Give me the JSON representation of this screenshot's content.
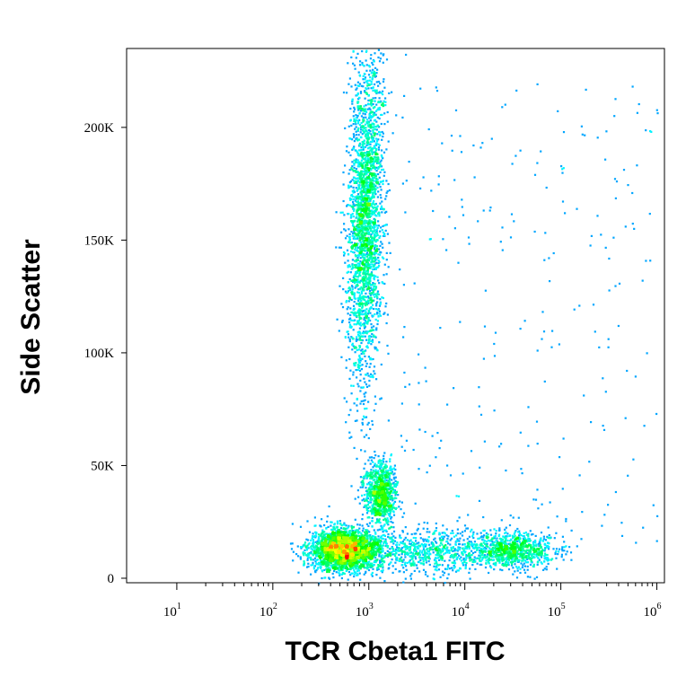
{
  "chart_data": {
    "type": "scatter",
    "subtype": "density-dot-plot",
    "title": "",
    "xlabel": "TCR Cbeta1 FITC",
    "ylabel": "Side Scatter",
    "x_scale": "log",
    "xlim": [
      3,
      1200000
    ],
    "ylim": [
      -2000,
      235000
    ],
    "x_ticks": [
      {
        "base": "10",
        "exp": "1",
        "value": 10
      },
      {
        "base": "10",
        "exp": "2",
        "value": 100
      },
      {
        "base": "10",
        "exp": "3",
        "value": 1000
      },
      {
        "base": "10",
        "exp": "4",
        "value": 10000
      },
      {
        "base": "10",
        "exp": "5",
        "value": 100000
      },
      {
        "base": "10",
        "exp": "6",
        "value": 1000000
      }
    ],
    "y_ticks": [
      {
        "label": "0",
        "value": 0
      },
      {
        "label": "50K",
        "value": 50000
      },
      {
        "label": "100K",
        "value": 100000
      },
      {
        "label": "150K",
        "value": 150000
      },
      {
        "label": "200K",
        "value": 200000
      }
    ],
    "grid": false,
    "legend": "none",
    "colormap": [
      "#0000ff",
      "#00ffff",
      "#00ff00",
      "#ffff00",
      "#ff0000"
    ],
    "populations": [
      {
        "x_center": 900,
        "y_center": 160000,
        "x_log_spread": 0.09,
        "y_spread": 38000,
        "tilt": 0.35,
        "density": "high"
      },
      {
        "x_center": 550,
        "y_center": 13000,
        "x_log_spread": 0.18,
        "y_spread": 4500,
        "tilt": 0,
        "density": "highest"
      },
      {
        "x_center": 1300,
        "y_center": 38000,
        "x_log_spread": 0.08,
        "y_spread": 7000,
        "tilt": 0,
        "density": "medium"
      },
      {
        "x_center": 30000,
        "y_center": 13000,
        "x_log_spread": 0.22,
        "y_spread": 4000,
        "tilt": 0,
        "density": "medium"
      },
      {
        "x_center": 4000,
        "y_center": 12000,
        "x_log_spread": 0.35,
        "y_spread": 5000,
        "tilt": 0,
        "density": "low"
      }
    ]
  }
}
